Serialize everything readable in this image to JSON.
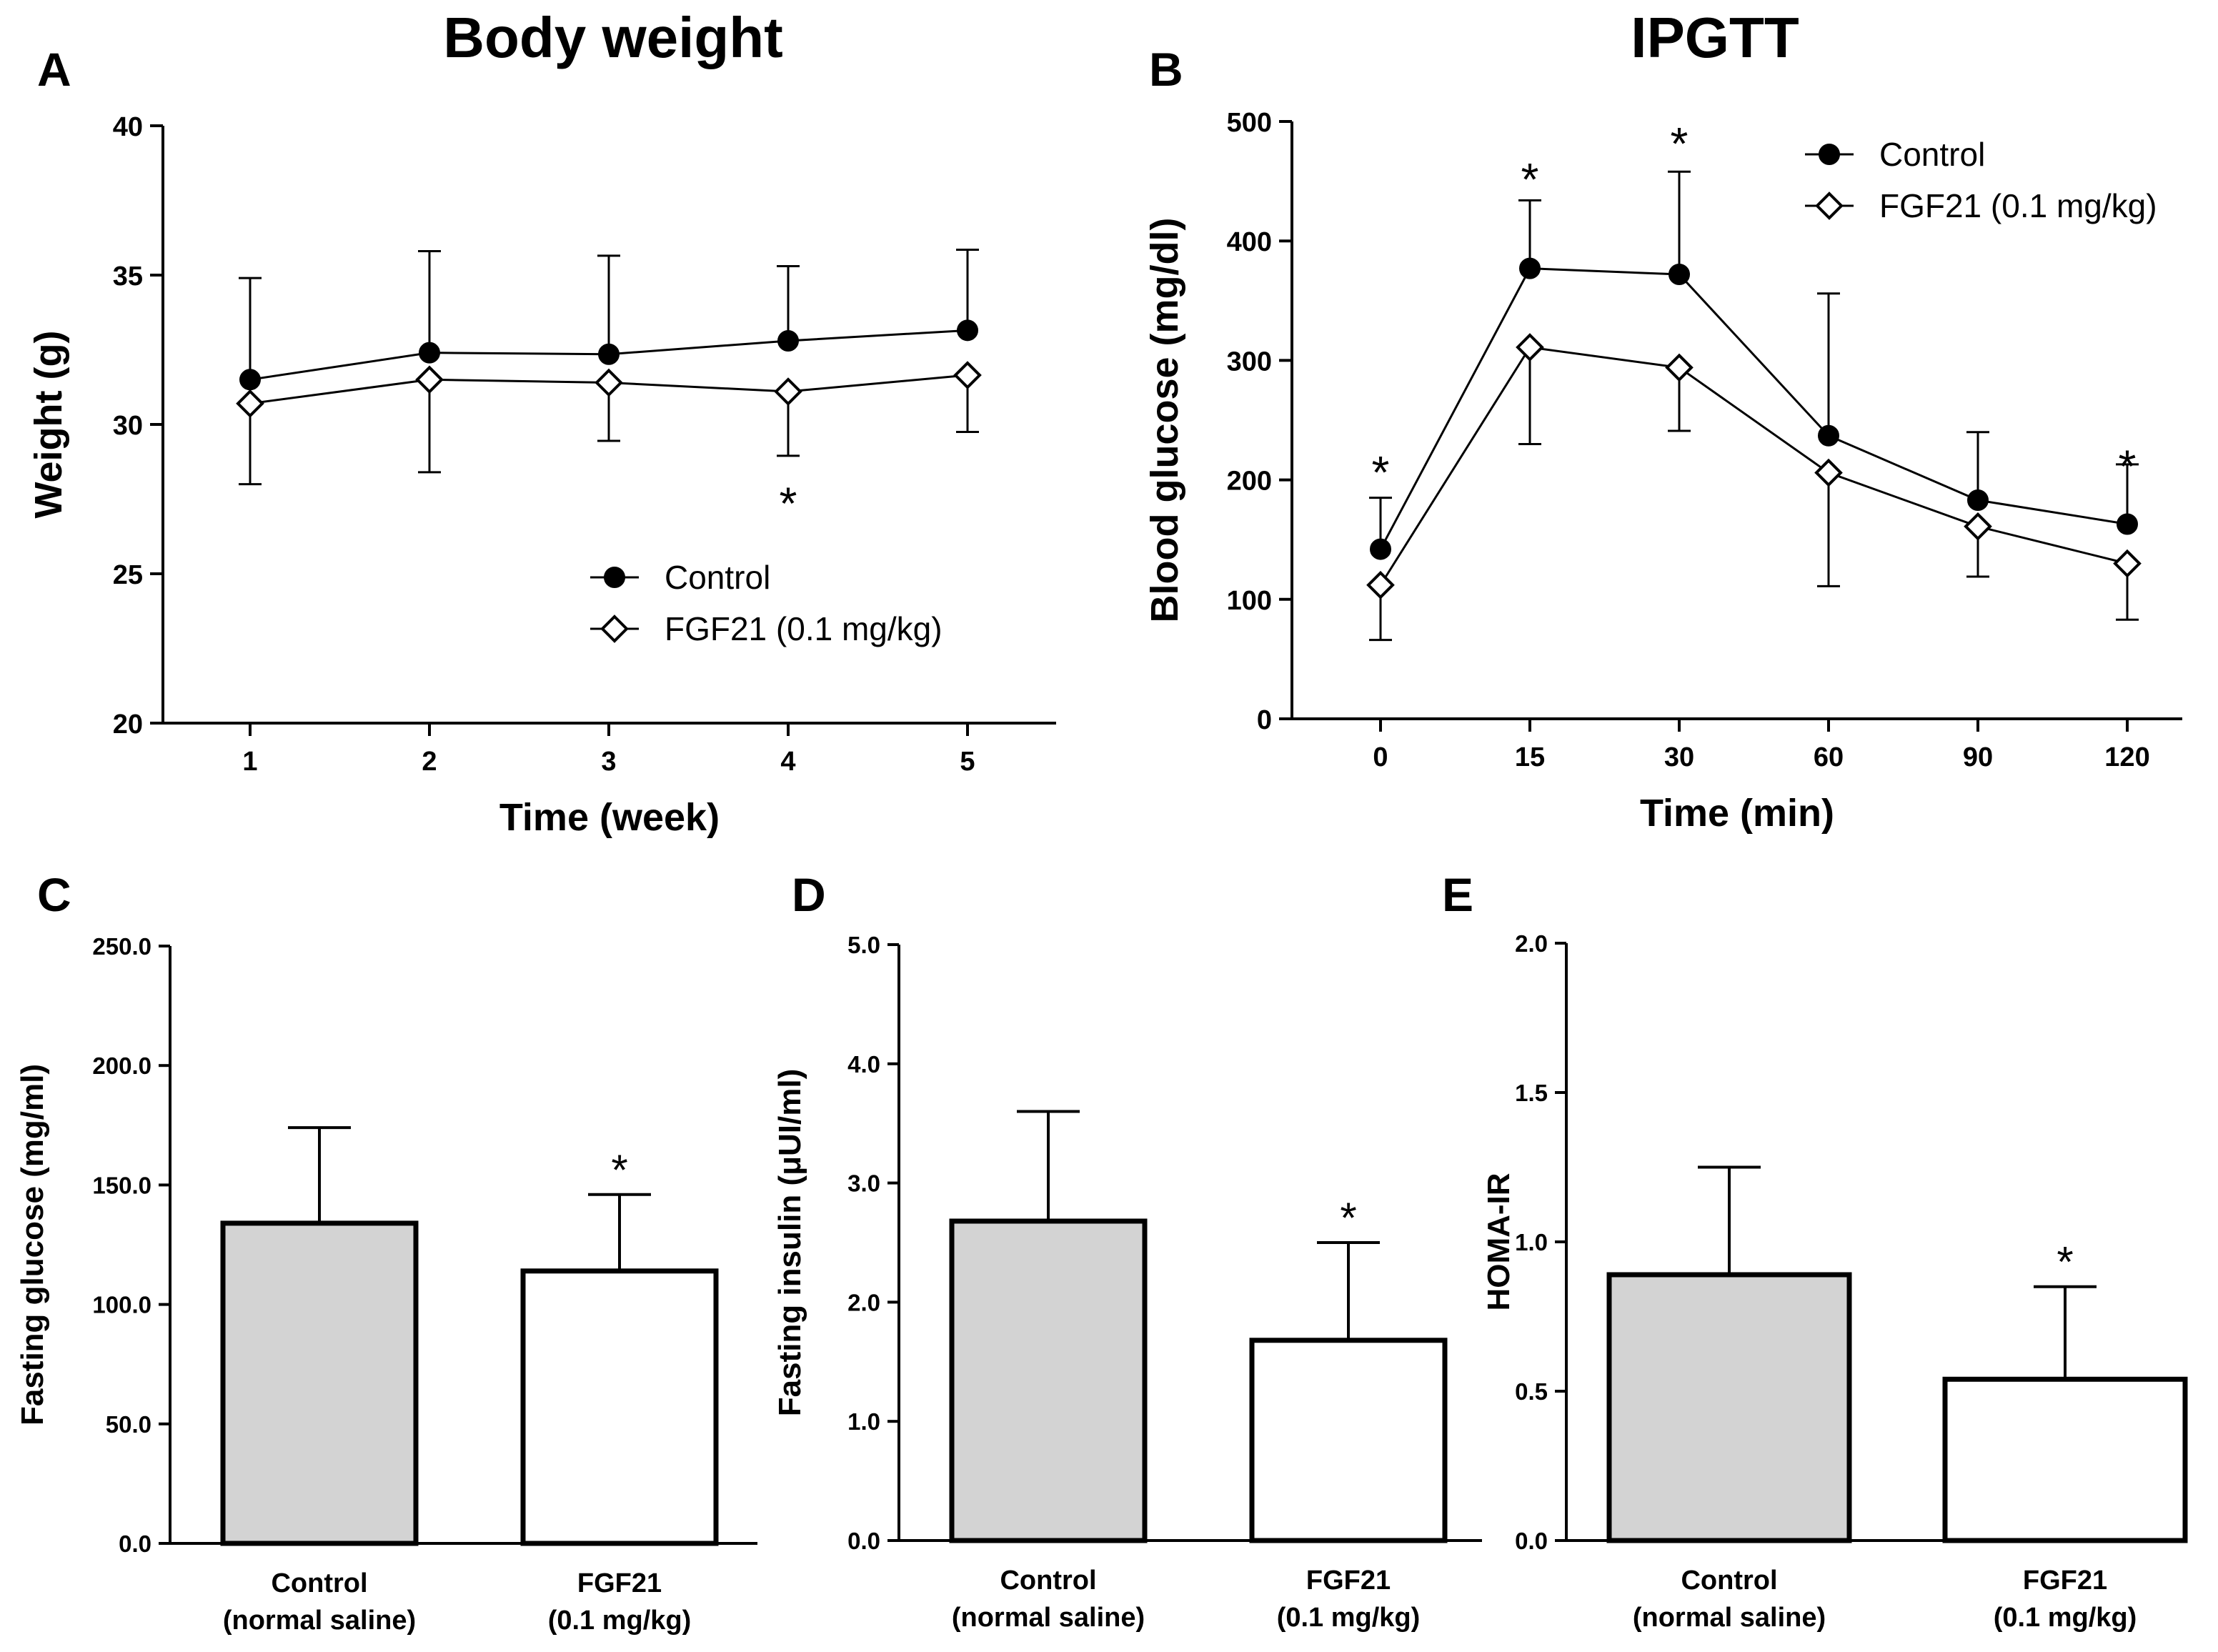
{
  "colors": {
    "axis": "#000000",
    "control_bar": "#d3d3d3",
    "fgf21_bar": "#ffffff",
    "marker": "#000000"
  },
  "chart_data": [
    {
      "panel": "A",
      "type": "line",
      "title": "Body weight",
      "xlabel": "Time (week)",
      "ylabel": "Weight (g)",
      "x": [
        1,
        2,
        3,
        4,
        5
      ],
      "x_tick_labels": [
        "1",
        "2",
        "3",
        "4",
        "5"
      ],
      "ylim": [
        20,
        40
      ],
      "y_ticks": [
        20,
        25,
        30,
        35,
        40
      ],
      "y_tick_labels": [
        "20",
        "25",
        "30",
        "35",
        "40"
      ],
      "legend_position": "bottom-right",
      "series": [
        {
          "name": "Control",
          "marker": "filled-circle",
          "values": [
            31.5,
            32.4,
            32.35,
            32.8,
            33.15
          ],
          "error_up": [
            34.9,
            35.8,
            35.65,
            35.3,
            35.85
          ]
        },
        {
          "name": "FGF21 (0.1 mg/kg)",
          "marker": "open-diamond",
          "values": [
            30.7,
            31.5,
            31.4,
            31.1,
            31.65
          ],
          "error_down": [
            28.0,
            28.4,
            29.45,
            28.95,
            29.75
          ]
        }
      ],
      "significance": [
        {
          "x": 4,
          "y": 27.5,
          "text": "*"
        }
      ]
    },
    {
      "panel": "B",
      "type": "line",
      "title": "IPGTT",
      "xlabel": "Time (min)",
      "ylabel": "Blood glucose (mg/dl)",
      "x": [
        0,
        15,
        30,
        60,
        90,
        120
      ],
      "x_tick_labels": [
        "0",
        "15",
        "30",
        "60",
        "90",
        "120"
      ],
      "ylim": [
        0,
        500
      ],
      "y_ticks": [
        0,
        100,
        200,
        300,
        400,
        500
      ],
      "y_tick_labels": [
        "0",
        "100",
        "200",
        "300",
        "400",
        "500"
      ],
      "legend_position": "top-right",
      "series": [
        {
          "name": "Control",
          "marker": "filled-circle",
          "values": [
            142,
            377,
            372,
            237,
            183,
            163
          ],
          "error_up": [
            185,
            434,
            458,
            356,
            240,
            213
          ]
        },
        {
          "name": "FGF21 (0.1 mg/kg)",
          "marker": "open-diamond",
          "values": [
            112,
            311,
            294,
            206,
            161,
            130
          ],
          "error_down": [
            66,
            230,
            241,
            111,
            119,
            83
          ]
        }
      ],
      "significance": [
        {
          "x": 0,
          "y": 210,
          "text": "*"
        },
        {
          "x": 15,
          "y": 455,
          "text": "*"
        },
        {
          "x": 30,
          "y": 485,
          "text": "*"
        },
        {
          "x": 120,
          "y": 215,
          "text": "*"
        }
      ]
    },
    {
      "panel": "C",
      "type": "bar",
      "ylabel": "Fasting glucose (mg/ml)",
      "categories": [
        [
          "Control",
          "(normal saline)"
        ],
        [
          "FGF21",
          "(0.1 mg/kg)"
        ]
      ],
      "values": [
        134,
        114
      ],
      "error_up": [
        174,
        146
      ],
      "ylim": [
        0,
        250
      ],
      "y_ticks": [
        0,
        50,
        100,
        150,
        200,
        250
      ],
      "y_tick_labels": [
        "0.0",
        "50.0",
        "100.0",
        "150.0",
        "200.0",
        "250.0"
      ],
      "significance": [
        {
          "category": 1,
          "text": "*"
        }
      ]
    },
    {
      "panel": "D",
      "type": "bar",
      "ylabel": "Fasting insulin (μUI/ml)",
      "categories": [
        [
          "Control",
          "(normal saline)"
        ],
        [
          "FGF21",
          "(0.1 mg/kg)"
        ]
      ],
      "values": [
        2.68,
        1.68
      ],
      "error_up": [
        3.6,
        2.5
      ],
      "ylim": [
        0,
        5
      ],
      "y_ticks": [
        0,
        1,
        2,
        3,
        4,
        5
      ],
      "y_tick_labels": [
        "0.0",
        "1.0",
        "2.0",
        "3.0",
        "4.0",
        "5.0"
      ],
      "significance": [
        {
          "category": 1,
          "text": "*"
        }
      ]
    },
    {
      "panel": "E",
      "type": "bar",
      "ylabel": "HOMA-IR",
      "categories": [
        [
          "Control",
          "(normal saline)"
        ],
        [
          "FGF21",
          "(0.1 mg/kg)"
        ]
      ],
      "values": [
        0.89,
        0.54
      ],
      "error_up": [
        1.25,
        0.85
      ],
      "ylim": [
        0,
        2
      ],
      "y_ticks": [
        0,
        0.5,
        1,
        1.5,
        2
      ],
      "y_tick_labels": [
        "0.0",
        "0.5",
        "1.0",
        "1.5",
        "2.0"
      ],
      "significance": [
        {
          "category": 1,
          "text": "*"
        }
      ]
    }
  ]
}
